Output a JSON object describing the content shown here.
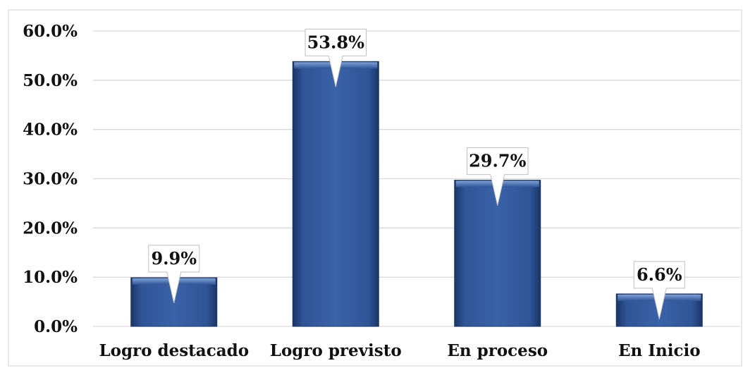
{
  "chart_data": {
    "type": "bar",
    "categories": [
      "Logro destacado",
      "Logro previsto",
      "En proceso",
      "En Inicio"
    ],
    "values": [
      9.9,
      53.8,
      29.7,
      6.6
    ],
    "data_labels": [
      "9.9%",
      "53.8%",
      "29.7%",
      "6.6%"
    ],
    "y_ticks": [
      0,
      10,
      20,
      30,
      40,
      50,
      60
    ],
    "y_tick_labels": [
      "0.0%",
      "10.0%",
      "20.0%",
      "30.0%",
      "40.0%",
      "50.0%",
      "60.0%"
    ],
    "ylim": [
      0,
      60
    ],
    "grid": true,
    "colors": {
      "bar": "#2f5597",
      "bar_light": "#5b82c5",
      "bar_dark": "#1a3566",
      "grid": "#d9d9d9",
      "frame": "#d0d0d0"
    }
  }
}
